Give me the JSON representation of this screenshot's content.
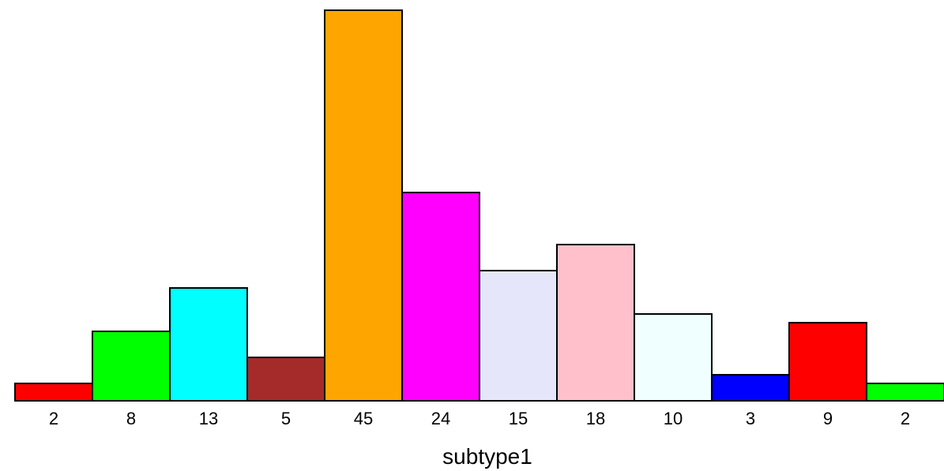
{
  "chart_data": {
    "type": "bar",
    "xlabel": "subtype1",
    "ylabel": "",
    "ylim": [
      0,
      45
    ],
    "grid": false,
    "legend": "none",
    "categories": [
      "2",
      "8",
      "13",
      "5",
      "45",
      "24",
      "15",
      "18",
      "10",
      "3",
      "9",
      "2"
    ],
    "values": [
      2,
      8,
      13,
      5,
      45,
      24,
      15,
      18,
      10,
      3,
      9,
      2
    ],
    "colors": [
      "#ff0000",
      "#00ff00",
      "#00ffff",
      "#a52a2a",
      "#ffa500",
      "#ff00ff",
      "#e6e6fa",
      "#ffc0cb",
      "#f0ffff",
      "#0000ff",
      "#ff0000",
      "#00ff00"
    ]
  }
}
